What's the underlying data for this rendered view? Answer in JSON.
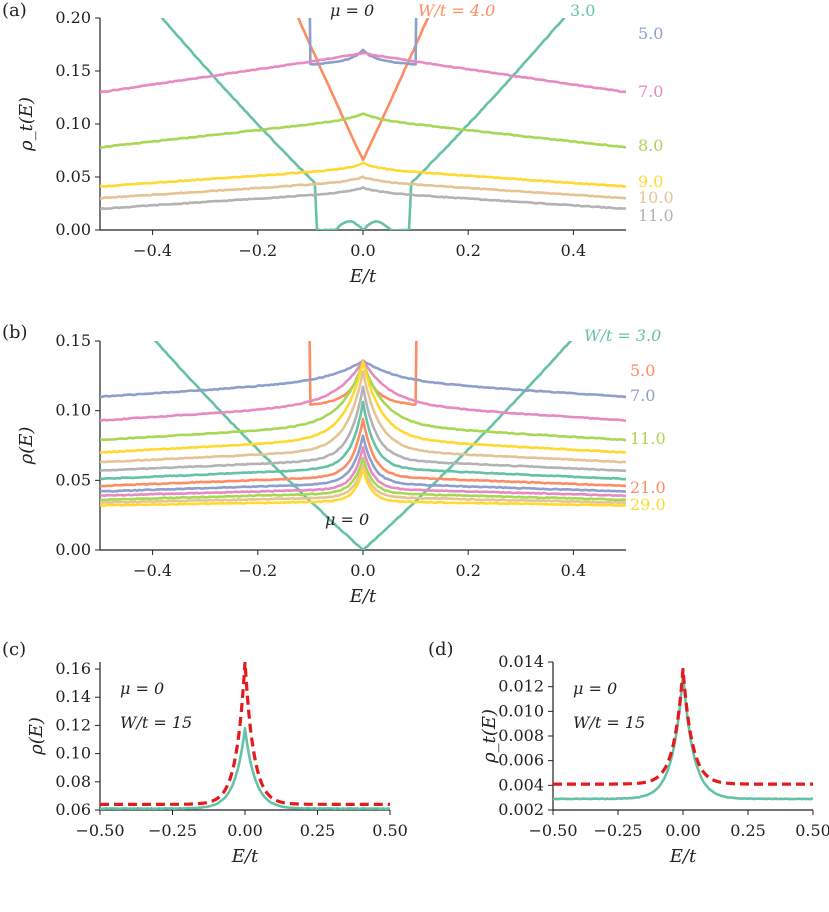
{
  "chart_data": [
    {
      "panel_label": "(a)",
      "type": "line",
      "xlabel": "E/t",
      "ylabel": "ρ_t(E)",
      "xlim": [
        -0.5,
        0.5
      ],
      "ylim": [
        0,
        0.2
      ],
      "xticks": [
        "−0.4",
        "−0.2",
        "0.0",
        "0.2",
        "0.4"
      ],
      "yticks": [
        "0.00",
        "0.05",
        "0.10",
        "0.15",
        "0.20"
      ],
      "annotations": {
        "mu": "μ = 0",
        "top_w": "W/t = 4.0",
        "top_w2": "3.0"
      },
      "series": [
        {
          "name": "3.0",
          "color": "#66c2a5",
          "shape": "v",
          "edge": 0.23,
          "dip": 0.0,
          "k": 0.47,
          "bumps": true
        },
        {
          "name": "4.0",
          "color": "#fc8d62",
          "shape": "v",
          "edge": 0.22,
          "dip": 0.066,
          "k": 1.05
        },
        {
          "name": "5.0",
          "color": "#8da0cb",
          "shape": "peak",
          "edge": 0.186,
          "base": 0.16,
          "center": 0.17,
          "w": 0.02,
          "dipx": 0.1
        },
        {
          "name": "7.0",
          "color": "#e78ac3",
          "shape": "peak",
          "edge": 0.13,
          "base": 0.166,
          "center": 0.167,
          "w": 0.05
        },
        {
          "name": "8.0",
          "color": "#a6d854",
          "shape": "peak",
          "edge": 0.078,
          "base": 0.105,
          "center": 0.11,
          "w": 0.03
        },
        {
          "name": "9.0",
          "color": "#ffd92f",
          "shape": "peak",
          "edge": 0.041,
          "base": 0.058,
          "center": 0.063,
          "w": 0.03
        },
        {
          "name": "10.0",
          "color": "#e5c494",
          "shape": "peak",
          "edge": 0.03,
          "base": 0.046,
          "center": 0.05,
          "w": 0.03
        },
        {
          "name": "11.0",
          "color": "#b3b3b3",
          "shape": "peak",
          "edge": 0.02,
          "base": 0.036,
          "center": 0.04,
          "w": 0.03
        }
      ]
    },
    {
      "panel_label": "(b)",
      "type": "line",
      "xlabel": "E/t",
      "ylabel": "ρ(E)",
      "xlim": [
        -0.5,
        0.5
      ],
      "ylim": [
        0,
        0.15
      ],
      "xticks": [
        "−0.4",
        "−0.2",
        "0.0",
        "0.2",
        "0.4"
      ],
      "yticks": [
        "0.00",
        "0.05",
        "0.10",
        "0.15"
      ],
      "annotations": {
        "mu": "μ = 0"
      },
      "labels": [
        {
          "text": "W/t = 3.0",
          "color": "#66c2a5"
        },
        {
          "text": "5.0",
          "color": "#fc8d62"
        },
        {
          "text": "7.0",
          "color": "#8da0cb"
        },
        {
          "text": "11.0",
          "color": "#a6d854"
        },
        {
          "text": "21.0",
          "color": "#fc8d62"
        },
        {
          "text": "29.0",
          "color": "#ffd92f"
        }
      ],
      "series": [
        {
          "color": "#66c2a5",
          "shape": "v",
          "edge": 0.147,
          "dip": 0.0,
          "k": 0.34
        },
        {
          "color": "#fc8d62",
          "shape": "peak",
          "edge": 0.128,
          "base": 0.108,
          "center": 0.135,
          "w": 0.02,
          "dipx": 0.1
        },
        {
          "color": "#8da0cb",
          "shape": "peak",
          "edge": 0.11,
          "base": 0.122,
          "center": 0.136,
          "w": 0.06
        },
        {
          "color": "#e78ac3",
          "shape": "peak",
          "edge": 0.093,
          "base": 0.105,
          "center": 0.136,
          "w": 0.05
        },
        {
          "color": "#a6d854",
          "shape": "peak",
          "edge": 0.079,
          "base": 0.09,
          "center": 0.135,
          "w": 0.04
        },
        {
          "color": "#ffd92f",
          "shape": "peak",
          "edge": 0.07,
          "base": 0.08,
          "center": 0.135,
          "w": 0.035
        },
        {
          "color": "#e5c494",
          "shape": "peak",
          "edge": 0.063,
          "base": 0.072,
          "center": 0.128,
          "w": 0.03
        },
        {
          "color": "#b3b3b3",
          "shape": "peak",
          "edge": 0.057,
          "base": 0.065,
          "center": 0.117,
          "w": 0.025
        },
        {
          "color": "#66c2a5",
          "shape": "peak",
          "edge": 0.051,
          "base": 0.059,
          "center": 0.106,
          "w": 0.022
        },
        {
          "color": "#fc8d62",
          "shape": "peak",
          "edge": 0.046,
          "base": 0.053,
          "center": 0.094,
          "w": 0.02
        },
        {
          "color": "#8da0cb",
          "shape": "peak",
          "edge": 0.042,
          "base": 0.048,
          "center": 0.082,
          "w": 0.02
        },
        {
          "color": "#e78ac3",
          "shape": "peak",
          "edge": 0.039,
          "base": 0.044,
          "center": 0.074,
          "w": 0.018
        },
        {
          "color": "#a6d854",
          "shape": "peak",
          "edge": 0.036,
          "base": 0.041,
          "center": 0.066,
          "w": 0.018
        },
        {
          "color": "#e5c494",
          "shape": "peak",
          "edge": 0.034,
          "base": 0.038,
          "center": 0.061,
          "w": 0.017
        },
        {
          "color": "#ffd92f",
          "shape": "peak",
          "edge": 0.032,
          "base": 0.035,
          "center": 0.058,
          "w": 0.016
        }
      ]
    },
    {
      "panel_label": "(c)",
      "type": "line",
      "xlabel": "E/t",
      "ylabel": "ρ(E)",
      "xlim": [
        -0.5,
        0.5
      ],
      "ylim": [
        0.06,
        0.165
      ],
      "xticks": [
        "−0.50",
        "−0.25",
        "0.00",
        "0.25",
        "0.50"
      ],
      "yticks": [
        "0.06",
        "0.08",
        "0.10",
        "0.12",
        "0.14",
        "0.16"
      ],
      "annotations": {
        "mu": "μ = 0",
        "w": "W/t = 15"
      },
      "series": [
        {
          "color": "#66c2a5",
          "dashed": false,
          "shape": "cusp",
          "edge": 0.061,
          "center": 0.118,
          "w": 0.035
        },
        {
          "color": "#e41a1c",
          "dashed": true,
          "shape": "cusp",
          "edge": 0.064,
          "center": 0.165,
          "w": 0.03
        }
      ]
    },
    {
      "panel_label": "(d)",
      "type": "line",
      "xlabel": "E/t",
      "ylabel": "ρ_t(E)",
      "xlim": [
        -0.5,
        0.5
      ],
      "ylim": [
        0.002,
        0.014
      ],
      "xticks": [
        "−0.50",
        "−0.25",
        "0.00",
        "0.25",
        "0.50"
      ],
      "yticks": [
        "0.002",
        "0.004",
        "0.006",
        "0.008",
        "0.010",
        "0.012",
        "0.014"
      ],
      "annotations": {
        "mu": "μ = 0",
        "w": "W/t = 15"
      },
      "series": [
        {
          "color": "#66c2a5",
          "dashed": false,
          "shape": "cusp",
          "edge": 0.0029,
          "center": 0.013,
          "w": 0.04,
          "slope": 0.004
        },
        {
          "color": "#e41a1c",
          "dashed": true,
          "shape": "cusp",
          "edge": 0.0041,
          "center": 0.0134,
          "w": 0.035
        }
      ]
    }
  ]
}
